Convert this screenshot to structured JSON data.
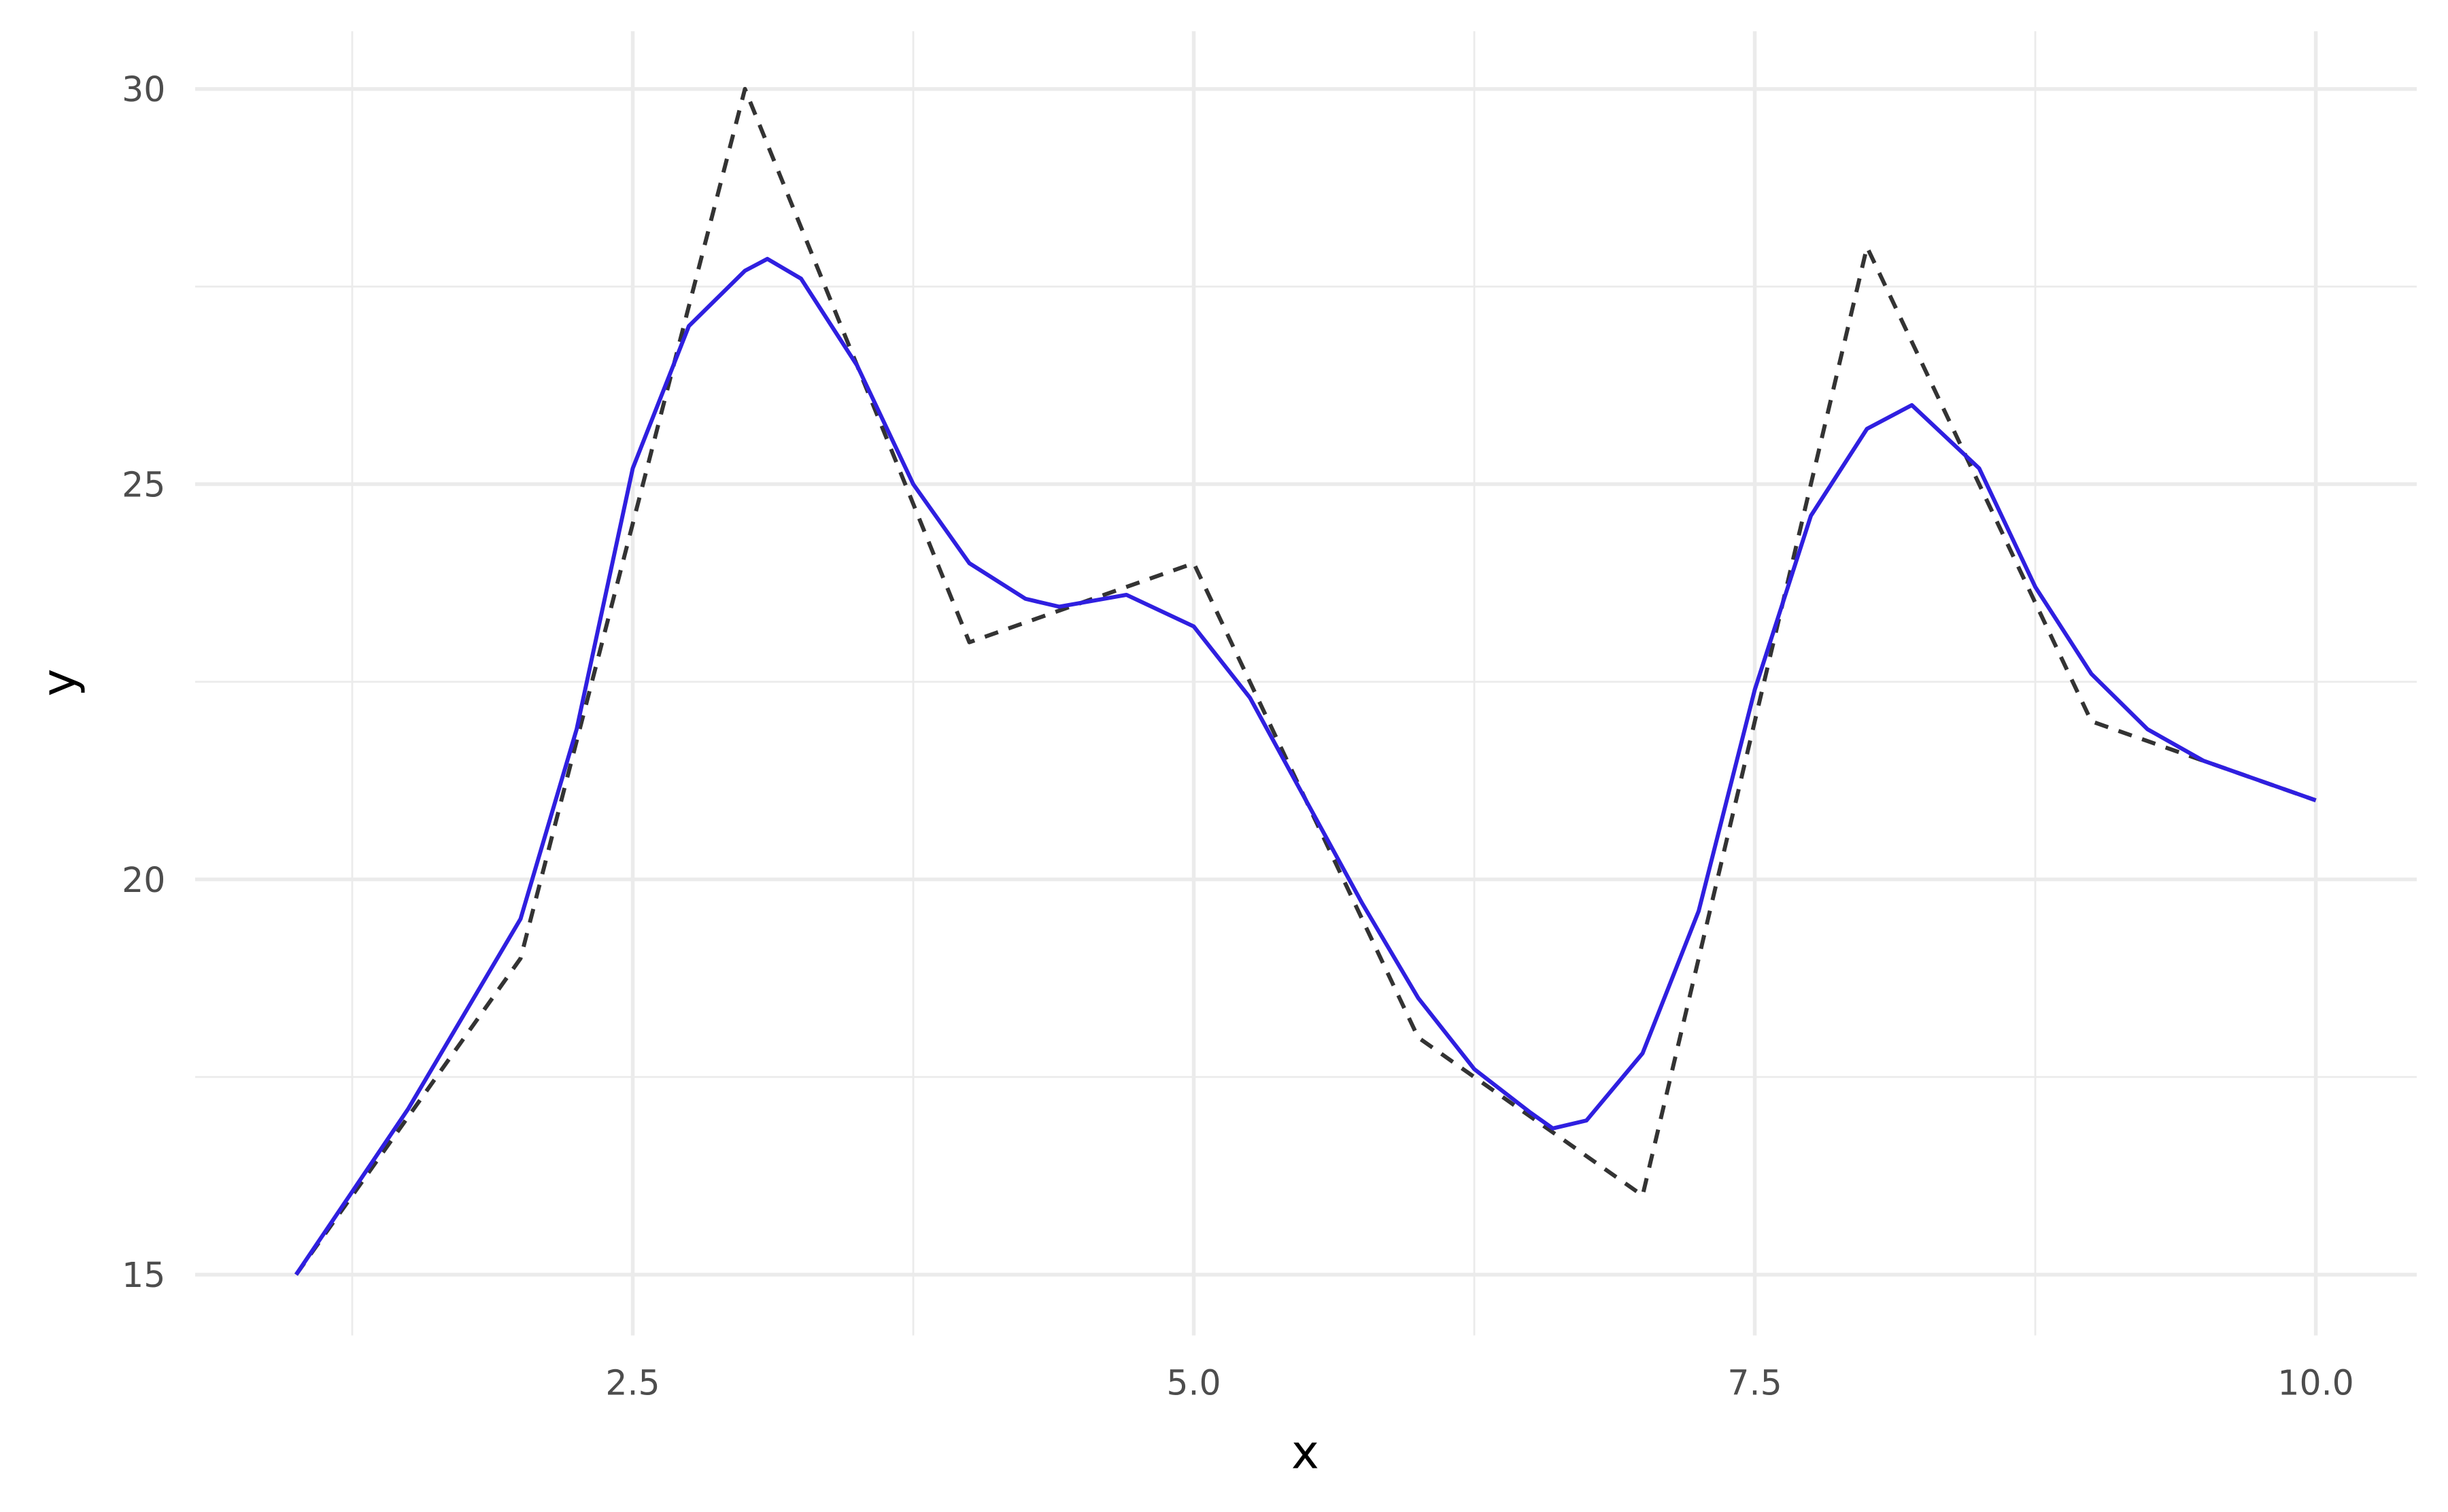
{
  "chart_data": {
    "type": "line",
    "x_label": "x",
    "y_label": "y",
    "xlim": [
      0.55,
      10.45
    ],
    "ylim": [
      14.23,
      30.73
    ],
    "xticks": [
      2.5,
      {
        "value": 5,
        "label": "5.0"
      },
      7.5,
      {
        "value": 10,
        "label": "10.0"
      }
    ],
    "yticks": [
      15,
      20,
      25,
      30
    ],
    "xminor": [
      1.25,
      3.75,
      6.25,
      8.75
    ],
    "yminor": [
      17.5,
      22.5,
      27.5
    ],
    "grid": true,
    "series": [
      {
        "color": "#333333",
        "dashed": true,
        "x": [
          1,
          2,
          3,
          4,
          5,
          6,
          7,
          8,
          9,
          10
        ],
        "values": [
          15,
          19,
          30,
          23,
          24,
          18,
          16,
          28,
          22,
          21
        ]
      },
      {
        "color": "#2f1fe0",
        "dashed": false,
        "x": [
          1,
          1.5,
          2,
          2.25,
          2.5,
          2.75,
          3,
          3.1,
          3.25,
          3.5,
          3.75,
          4,
          4.25,
          4.4,
          4.7,
          5,
          5.25,
          5.5,
          5.75,
          6,
          6.25,
          6.5,
          6.6,
          6.75,
          7,
          7.25,
          7.5,
          7.75,
          8,
          8.2,
          8.5,
          8.75,
          9,
          9.25,
          9.5,
          10
        ],
        "values": [
          15,
          17.1,
          19.5,
          21.9,
          25.2,
          27.0,
          27.7,
          27.85,
          27.6,
          26.5,
          25.0,
          24.0,
          23.55,
          23.45,
          23.6,
          23.2,
          22.3,
          21.0,
          19.7,
          18.5,
          17.6,
          17.05,
          16.85,
          16.95,
          17.8,
          19.6,
          22.4,
          24.6,
          25.7,
          26.0,
          25.2,
          23.7,
          22.6,
          21.9,
          21.5,
          21.0
        ]
      }
    ]
  }
}
